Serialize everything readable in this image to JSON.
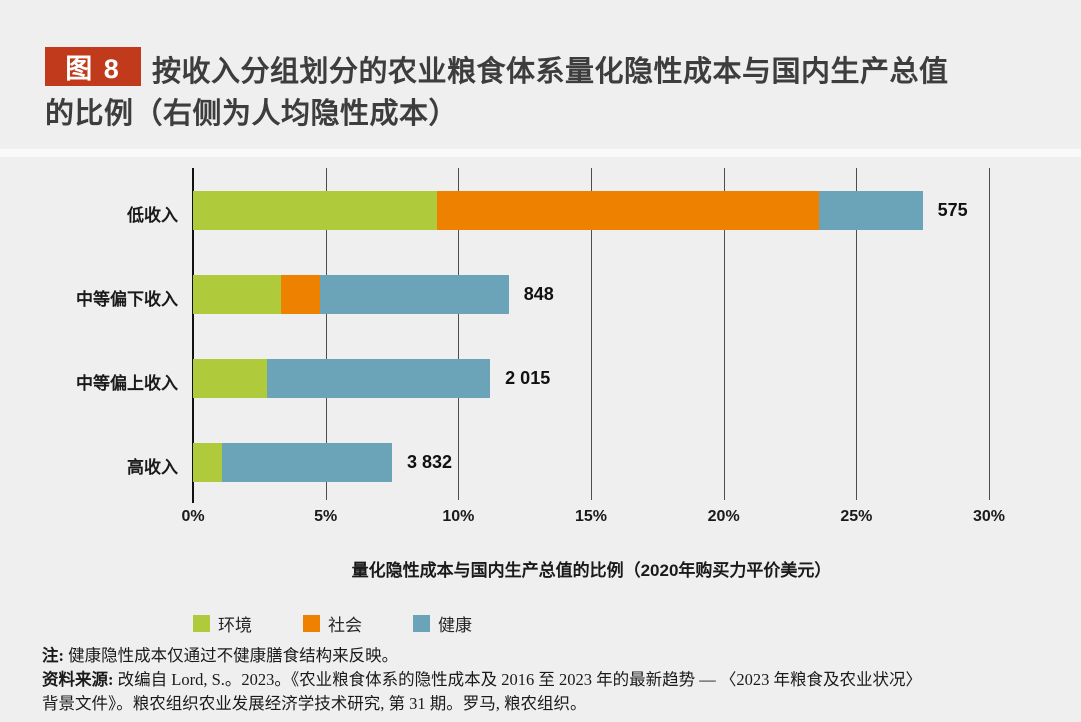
{
  "header": {
    "figure_badge": "图 8",
    "title_line1": "按收入分组划分的农业粮食体系量化隐性成本与国内生产总值",
    "title_line2": "的比例（右侧为人均隐性成本）"
  },
  "chart_data": {
    "type": "bar",
    "orientation": "horizontal",
    "stacked": true,
    "title": "按收入分组划分的农业粮食体系量化隐性成本与国内生产总值的比例（右侧为人均隐性成本）",
    "categories": [
      "低收入",
      "中等偏下收入",
      "中等偏上收入",
      "高收入"
    ],
    "series": [
      {
        "name": "环境",
        "color": "#afca3b",
        "values": [
          9.2,
          3.3,
          2.8,
          1.1
        ]
      },
      {
        "name": "社会",
        "color": "#ef8100",
        "values": [
          14.4,
          1.5,
          0,
          0
        ]
      },
      {
        "name": "健康",
        "color": "#6ba4b8",
        "values": [
          3.9,
          7.1,
          8.4,
          6.4
        ]
      }
    ],
    "totals_pct": [
      27.5,
      11.9,
      11.2,
      7.5
    ],
    "bar_end_labels": [
      "575",
      "848",
      "2 015",
      "3 832"
    ],
    "bar_end_labels_meaning": "人均隐性成本",
    "xlabel": "量化隐性成本与国内生产总值的比例（2020年购买力平价美元）",
    "x_ticks": [
      "0%",
      "5%",
      "10%",
      "15%",
      "20%",
      "25%",
      "30%"
    ],
    "x_tick_values": [
      0,
      5,
      10,
      15,
      20,
      25,
      30
    ],
    "xlim": [
      0,
      30
    ],
    "grid": "vertical",
    "legend_position": "bottom-left"
  },
  "notes": {
    "note_prefix": "注:",
    "note_text": " 健康隐性成本仅通过不健康膳食结构来反映。",
    "source_prefix": "资料来源:",
    "source_line1": " 改编自 Lord, S.。2023。《农业粮食体系的隐性成本及 2016 至 2023 年的最新趋势 — 〈2023 年粮食及农业状况〉",
    "source_line2": "背景文件》。粮农组织农业发展经济学技术研究, 第 31 期。罗马, 粮农组织。"
  },
  "colors": {
    "background": "#efefef",
    "badge_red": "#c13a1b",
    "bar_green": "#afca3b",
    "bar_orange": "#ef8100",
    "bar_blue": "#6ba4b8",
    "grid_gray": "#4d4d4d",
    "axis_black": "#111111",
    "title_gray": "#3d3d3d"
  }
}
